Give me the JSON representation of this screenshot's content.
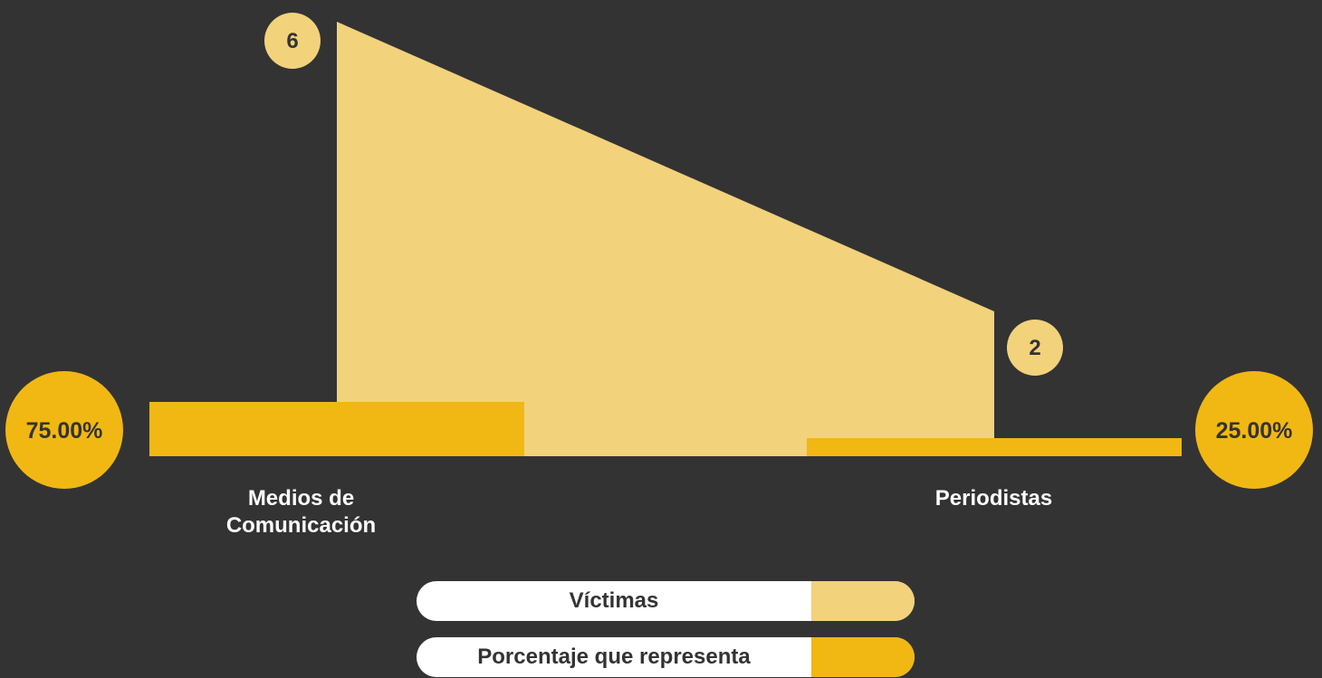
{
  "chart_data": {
    "type": "bar",
    "categories": [
      "Medios de\nComunicación",
      "Periodistas"
    ],
    "series": [
      {
        "name": "Víctimas",
        "values": [
          6,
          2
        ],
        "value_labels": [
          "6",
          "2"
        ],
        "color": "#F2D27B"
      },
      {
        "name": "Porcentaje que representa",
        "values": [
          75.0,
          25.0
        ],
        "value_labels": [
          "75.00%",
          "25.00%"
        ],
        "color": "#F1B813"
      }
    ],
    "legend_placement": "bottom-center",
    "grid": false
  },
  "colors": {
    "background": "#333333",
    "victimas": "#F2D27B",
    "porcentaje": "#F1B813",
    "legend_bg": "#FFFFFF",
    "label_text": "#FFFFFF",
    "badge_text": "#333333"
  },
  "legend": {
    "items": [
      {
        "label": "Víctimas"
      },
      {
        "label": "Porcentaje que representa"
      }
    ]
  }
}
